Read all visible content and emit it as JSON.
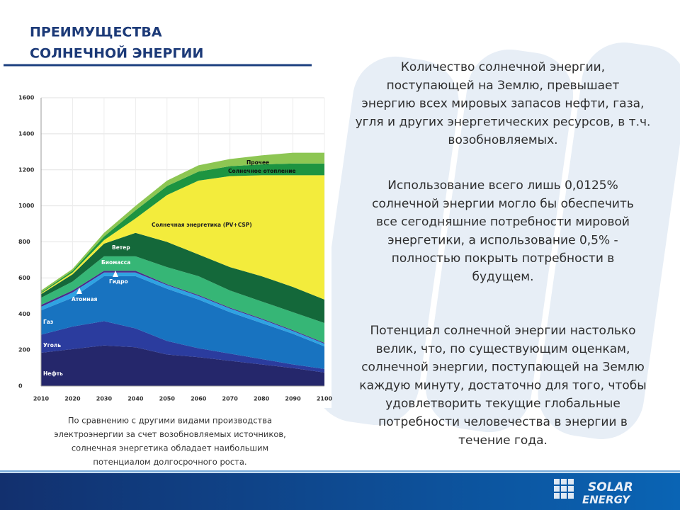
{
  "header": {
    "title_lines": [
      "ПРЕИМУЩЕСТВА",
      "СОЛНЕЧНОЙ ЭНЕРГИИ"
    ]
  },
  "paragraphs": [
    [
      "Количество солнечной энергии,",
      "поступающей на Землю, превышает",
      "энергию всех мировых запасов нефти, газа,",
      "угля и других энергетических ресурсов, в т.ч.",
      "возобновляемых."
    ],
    [
      "Использование всего лишь 0,0125%",
      "солнечной энергии могло бы обеспечить",
      "все сегодняшние потребности мировой",
      "энергетики, а использование 0,5% -",
      "полностью покрыть потребности в",
      "будущем."
    ],
    [
      "Потенциал солнечной энергии настолько",
      "велик, что, по существующим оценкам,",
      "солнечной энергии, поступающей на Землю",
      "каждую минуту, достаточно для того, чтобы",
      "удовлетворить текущие глобальные",
      "потребности человечества в энергии в",
      "течение года."
    ]
  ],
  "caption_lines": [
    "По сравнению с другими видами производства",
    "электроэнергии за счет возобновляемых источников,",
    "солнечная энергетика обладает наибольшим",
    "потенциалом долгосрочного роста."
  ],
  "logo": [
    "SOLAR",
    "ENERGY"
  ],
  "chart_data": {
    "type": "stacked_area",
    "x": [
      2010,
      2020,
      2030,
      2040,
      2050,
      2060,
      2070,
      2080,
      2090,
      2100
    ],
    "xlim": [
      2010,
      2100
    ],
    "xticks": [
      2010,
      2020,
      2030,
      2040,
      2050,
      2060,
      2070,
      2080,
      2090,
      2100
    ],
    "ylim": [
      0,
      1600
    ],
    "yticks": [
      0,
      200,
      400,
      600,
      800,
      1000,
      1200,
      1400,
      1600
    ],
    "grid": true,
    "series": [
      {
        "name": "Нефть",
        "color": "#25276b",
        "values": [
          185,
          205,
          225,
          215,
          175,
          160,
          140,
          120,
          100,
          75
        ]
      },
      {
        "name": "Уголь",
        "color": "#2b3c9e",
        "values": [
          100,
          125,
          135,
          105,
          75,
          50,
          40,
          30,
          20,
          20
        ]
      },
      {
        "name": "Газ",
        "color": "#1873c0",
        "values": [
          135,
          160,
          250,
          290,
          290,
          270,
          230,
          200,
          170,
          125
        ]
      },
      {
        "name": "Атомная",
        "color": "#2fa3e2",
        "values": [
          20,
          30,
          20,
          20,
          20,
          20,
          20,
          20,
          15,
          15
        ]
      },
      {
        "name": "Гидро",
        "color": "#4b2a8c",
        "values": [
          10,
          10,
          10,
          10,
          5,
          5,
          5,
          5,
          5,
          5
        ]
      },
      {
        "name": "Биомасса",
        "color": "#36b676",
        "values": [
          40,
          50,
          80,
          80,
          95,
          105,
          95,
          95,
          100,
          110
        ]
      },
      {
        "name": "Ветер",
        "color": "#14683a",
        "values": [
          20,
          40,
          70,
          130,
          140,
          120,
          130,
          140,
          140,
          130
        ]
      },
      {
        "name": "Солнечная энергетика (PV+CSP)",
        "color": "#f3ec3c",
        "values": [
          5,
          10,
          20,
          80,
          260,
          410,
          505,
          560,
          620,
          690
        ]
      },
      {
        "name": "Солнечное отопление",
        "color": "#1d9441",
        "values": [
          5,
          10,
          20,
          45,
          50,
          50,
          55,
          60,
          65,
          65
        ]
      },
      {
        "name": "Прочее",
        "color": "#8dc653",
        "values": [
          10,
          10,
          20,
          25,
          30,
          35,
          40,
          50,
          60,
          60
        ]
      }
    ]
  }
}
